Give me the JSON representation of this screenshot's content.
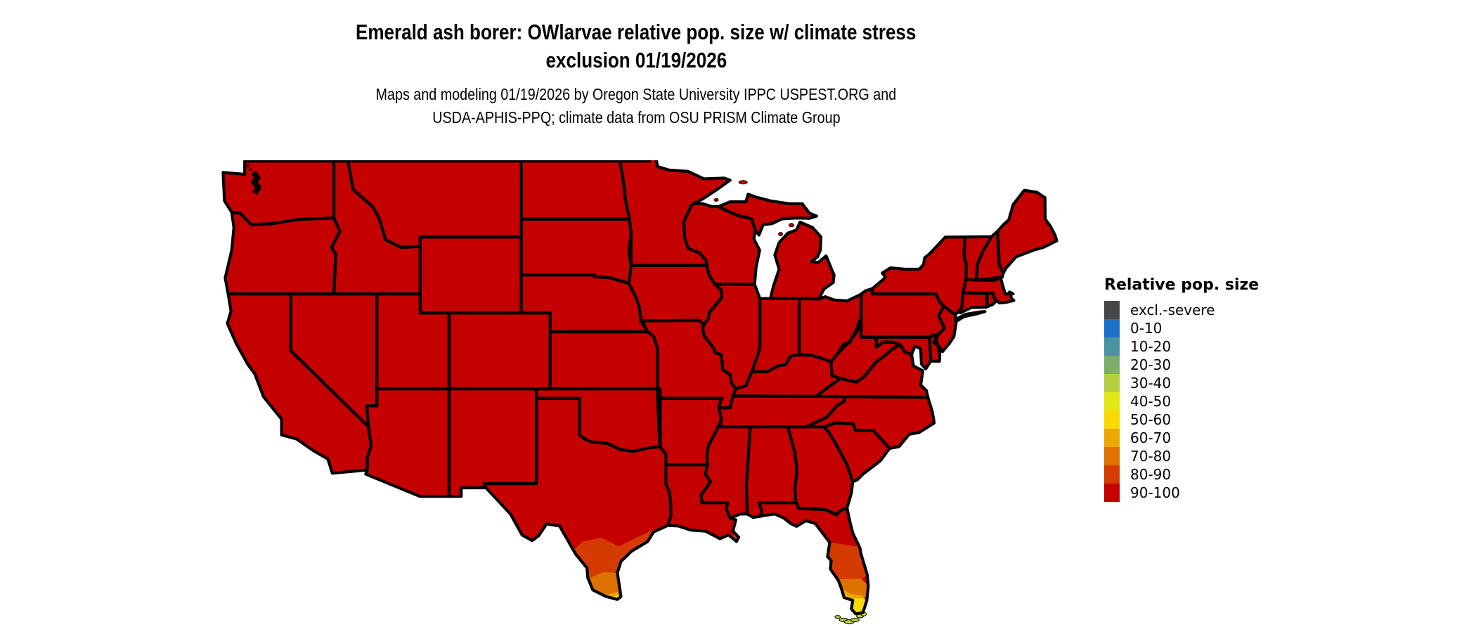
{
  "header": {
    "title_line1": "Emerald ash borer: OWlarvae relative pop. size w/ climate stress",
    "title_line2": "exclusion 01/19/2026",
    "subtitle_line1": "Maps and modeling 01/19/2026 by Oregon State University IPPC USPEST.ORG and",
    "subtitle_line2": "USDA-APHIS-PPQ; climate data from OSU PRISM Climate Group"
  },
  "legend": {
    "title": "Relative pop. size",
    "items": [
      {
        "label": "excl.-severe",
        "color": "#474747"
      },
      {
        "label": "0-10",
        "color": "#1d70c8"
      },
      {
        "label": "10-20",
        "color": "#4a92a0"
      },
      {
        "label": "20-30",
        "color": "#7bae6c"
      },
      {
        "label": "30-40",
        "color": "#b5cf3f"
      },
      {
        "label": "40-50",
        "color": "#e2e716"
      },
      {
        "label": "50-60",
        "color": "#f8da00"
      },
      {
        "label": "60-70",
        "color": "#eba702"
      },
      {
        "label": "70-80",
        "color": "#de7200"
      },
      {
        "label": "80-90",
        "color": "#d43b00"
      },
      {
        "label": "90-100",
        "color": "#c40000"
      }
    ]
  },
  "map": {
    "base_class": "90-100",
    "border_color": "#000000",
    "water_color": "#ffffff",
    "regions": [
      {
        "name": "conus-majority",
        "class": "90-100"
      },
      {
        "name": "south-texas-gradient",
        "classes": [
          "80-90",
          "70-80",
          "60-70",
          "50-60"
        ]
      },
      {
        "name": "south-florida-gradient",
        "classes": [
          "80-90",
          "70-80",
          "60-70",
          "50-60"
        ]
      },
      {
        "name": "florida-keys",
        "classes": [
          "40-50",
          "30-40"
        ]
      }
    ]
  }
}
